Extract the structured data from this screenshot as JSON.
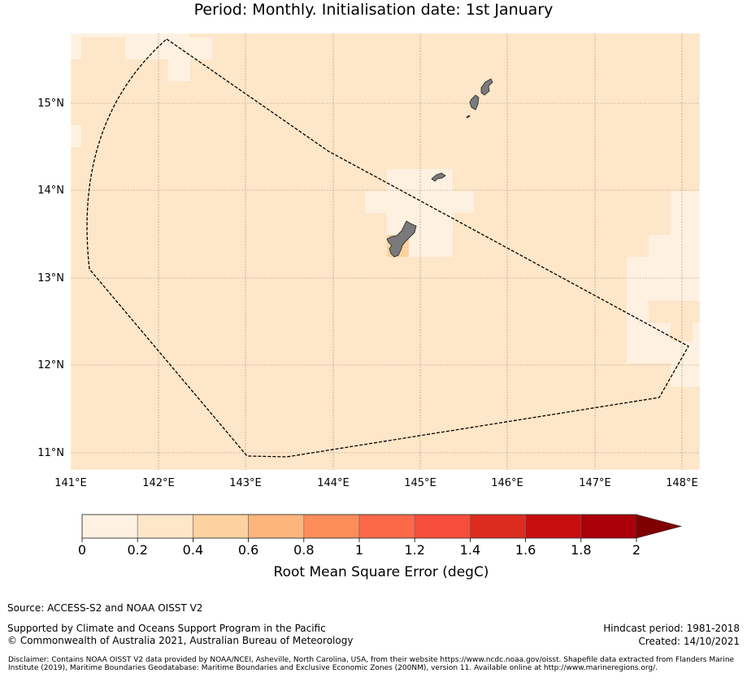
{
  "title": "Period: Monthly. Initialisation date: 1st January",
  "map": {
    "lon_range": [
      141.0,
      148.2
    ],
    "lat_range": [
      10.8,
      15.8
    ],
    "x_ticks": [
      "141°E",
      "142°E",
      "143°E",
      "144°E",
      "145°E",
      "146°E",
      "147°E",
      "148°E"
    ],
    "y_ticks": [
      "15°N",
      "14°N",
      "13°N",
      "12°N",
      "11°N"
    ],
    "base_fill_color": "#fee6c8",
    "low_fill_color": "#fff1e1",
    "mid_fill_color": "#fdd29f",
    "land_color": "#7a7a7a",
    "eez_boundary_style": "dashed"
  },
  "colorbar": {
    "ticks": [
      "0",
      "0.2",
      "0.4",
      "0.6",
      "0.8",
      "1",
      "1.2",
      "1.4",
      "1.6",
      "1.8",
      "2"
    ],
    "colors": [
      "#fff1e1",
      "#fee6c8",
      "#fdd29f",
      "#fdb57d",
      "#fc8d59",
      "#fd6849",
      "#f64d3c",
      "#dd2c1f",
      "#c80d0f",
      "#a90009"
    ],
    "extend_color": "#7f0000",
    "label": "Root Mean Square Error (degC)"
  },
  "footer": {
    "source": "Source: ACCESS-S2 and NOAA OISST V2",
    "support": "Supported by Climate and Oceans Support Program in the Pacific",
    "copyright": "© Commonwealth of Australia 2021, Australian Bureau of Meteorology",
    "hindcast": "Hindcast period: 1981-2018",
    "created": "Created: 14/10/2021",
    "disclaimer": "Disclaimer: Contains NOAA OISST V2 data provided by NOAA/NCEI, Asheville, North Carolina, USA, from their website https://www.ncdc.noaa.gov/oisst. Shapefile data extracted from Flanders Marine Institute (2019), Maritime Boundaries Geodatabase: Maritime Boundaries and Exclusive Economic Zones (200NM), version 11. Available online at http://www.marineregions.org/."
  }
}
